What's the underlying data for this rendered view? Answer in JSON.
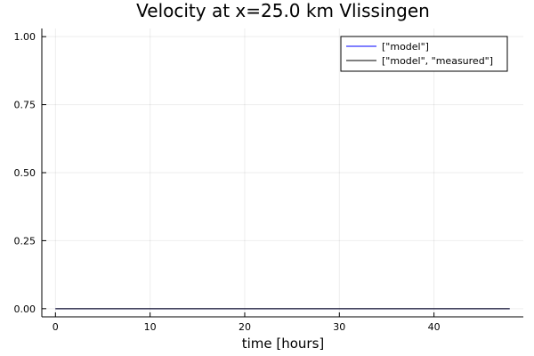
{
  "chart_data": {
    "type": "line",
    "title": "Velocity at x=25.0 km Vlissingen",
    "xlabel": "time [hours]",
    "ylabel": "",
    "xlim": [
      -1.44,
      49.44
    ],
    "ylim": [
      -0.03,
      1.03
    ],
    "xticks": [
      0,
      10,
      20,
      30,
      40
    ],
    "yticks": [
      0.0,
      0.25,
      0.5,
      0.75,
      1.0
    ],
    "xtick_labels": [
      "0",
      "10",
      "20",
      "30",
      "40"
    ],
    "ytick_labels": [
      "0.00",
      "0.25",
      "0.50",
      "0.75",
      "1.00"
    ],
    "grid": true,
    "legend_position": "top-right",
    "series": [
      {
        "name": "[\"model\"]",
        "color": "#0000ff",
        "x": [
          0,
          48
        ],
        "y": [
          0,
          0
        ]
      },
      {
        "name": "[\"model\", \"measured\"]",
        "color": "#000000",
        "x": [
          0,
          48
        ],
        "y": [
          0,
          0
        ]
      }
    ]
  }
}
